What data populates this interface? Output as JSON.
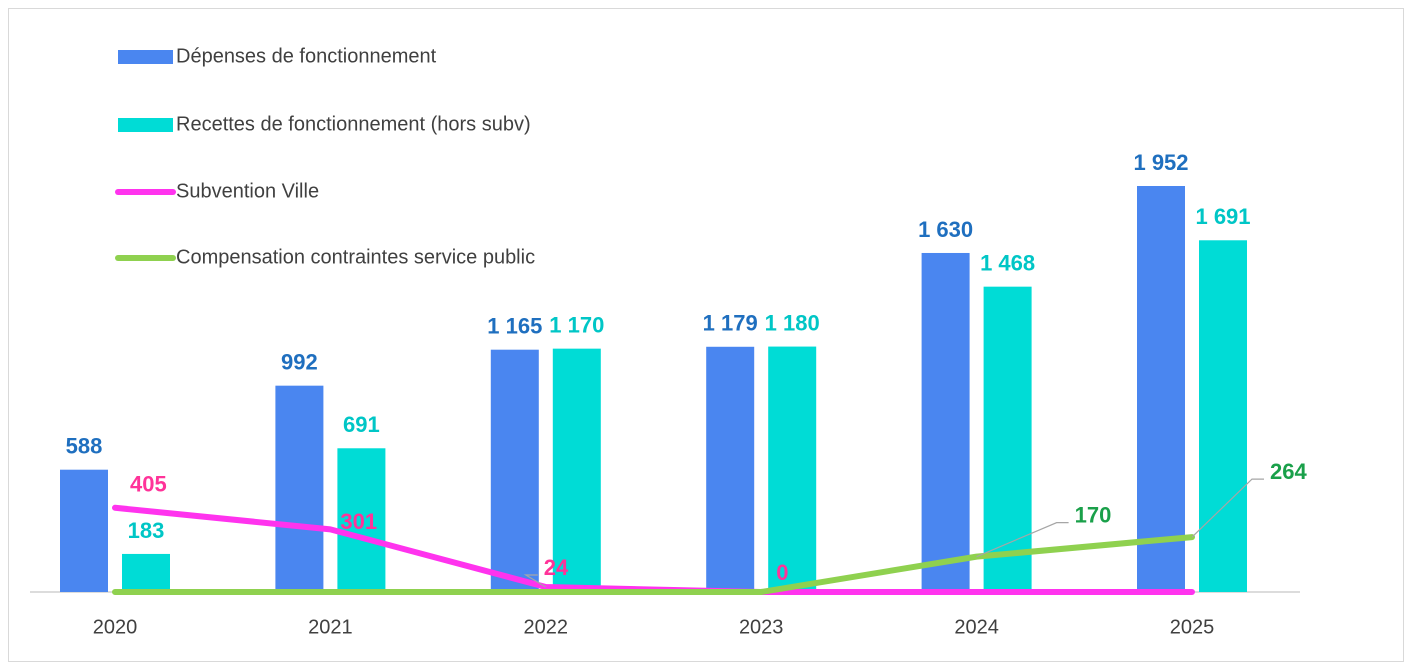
{
  "chart_data": {
    "type": "bar+line",
    "categories": [
      "2020",
      "2021",
      "2022",
      "2023",
      "2024",
      "2025"
    ],
    "series": [
      {
        "name": "Dépenses de fonctionnement",
        "type": "bar",
        "color": "#4a86f0",
        "label_color": "#1f6fbf",
        "values": [
          588,
          992,
          1165,
          1179,
          1630,
          1952
        ],
        "value_labels": [
          "588",
          "992",
          "1 165",
          "1 179",
          "1 630",
          "1 952"
        ]
      },
      {
        "name": "Recettes de fonctionnement (hors subv)",
        "type": "bar",
        "color": "#00dcd6",
        "label_color": "#00c6c6",
        "values": [
          183,
          691,
          1170,
          1180,
          1468,
          1691
        ],
        "value_labels": [
          "183",
          "691",
          "1 170",
          "1 180",
          "1 468",
          "1 691"
        ]
      },
      {
        "name": "Subvention Ville",
        "type": "line",
        "color": "#ff33ee",
        "label_color": "#ff3399",
        "values": [
          405,
          301,
          24,
          0,
          0,
          0
        ],
        "value_labels": [
          "405",
          "301",
          "24",
          "0",
          null,
          null
        ]
      },
      {
        "name": "Compensation contraintes service public",
        "type": "line",
        "color": "#8fd14f",
        "label_color": "#1aa04a",
        "values": [
          0,
          0,
          0,
          0,
          170,
          264
        ],
        "value_labels": [
          null,
          null,
          null,
          null,
          "170",
          "264"
        ]
      }
    ],
    "legend": "top-left"
  }
}
